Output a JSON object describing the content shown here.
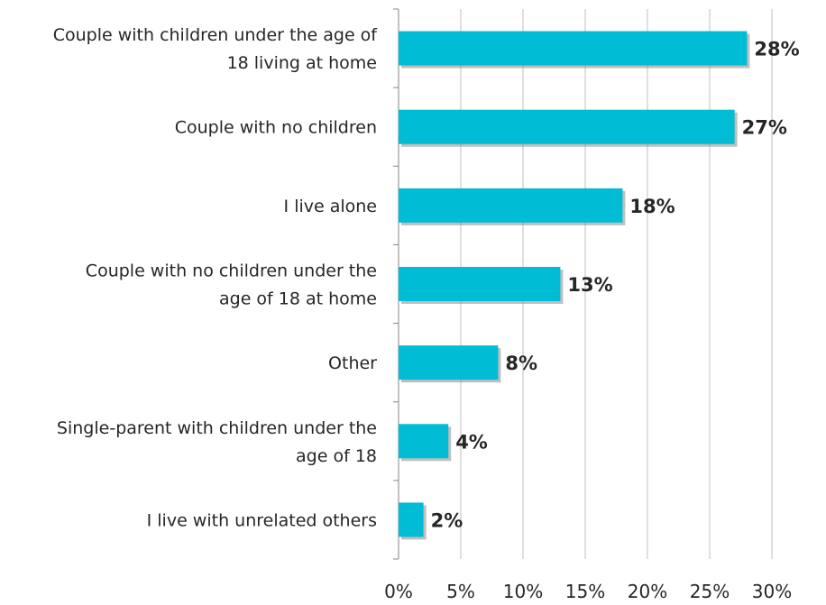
{
  "chart_data": {
    "type": "bar",
    "orientation": "horizontal",
    "categories": [
      [
        "Couple with children under the age of",
        "18 living at home"
      ],
      [
        "Couple with no children"
      ],
      [
        "I live alone"
      ],
      [
        "Couple with no children under the",
        "age of 18 at home"
      ],
      [
        "Other"
      ],
      [
        "Single-parent with children under the",
        "age of 18"
      ],
      [
        "I live with unrelated others"
      ]
    ],
    "values": [
      28,
      27,
      18,
      13,
      8,
      4,
      2
    ],
    "data_labels": [
      "28%",
      "27%",
      "18%",
      "13%",
      "8%",
      "4%",
      "2%"
    ],
    "x_ticks": [
      0,
      5,
      10,
      15,
      20,
      25,
      30
    ],
    "x_tick_labels": [
      "0%",
      "5%",
      "10%",
      "15%",
      "20%",
      "25%",
      "30%"
    ],
    "xlim": [
      0,
      30
    ],
    "grid": true,
    "legend": "none",
    "title": "",
    "xlabel": "",
    "ylabel": "",
    "colors": {
      "bar": "#00bcd4",
      "grid": "#bfbfbf",
      "text": "#262626"
    }
  }
}
